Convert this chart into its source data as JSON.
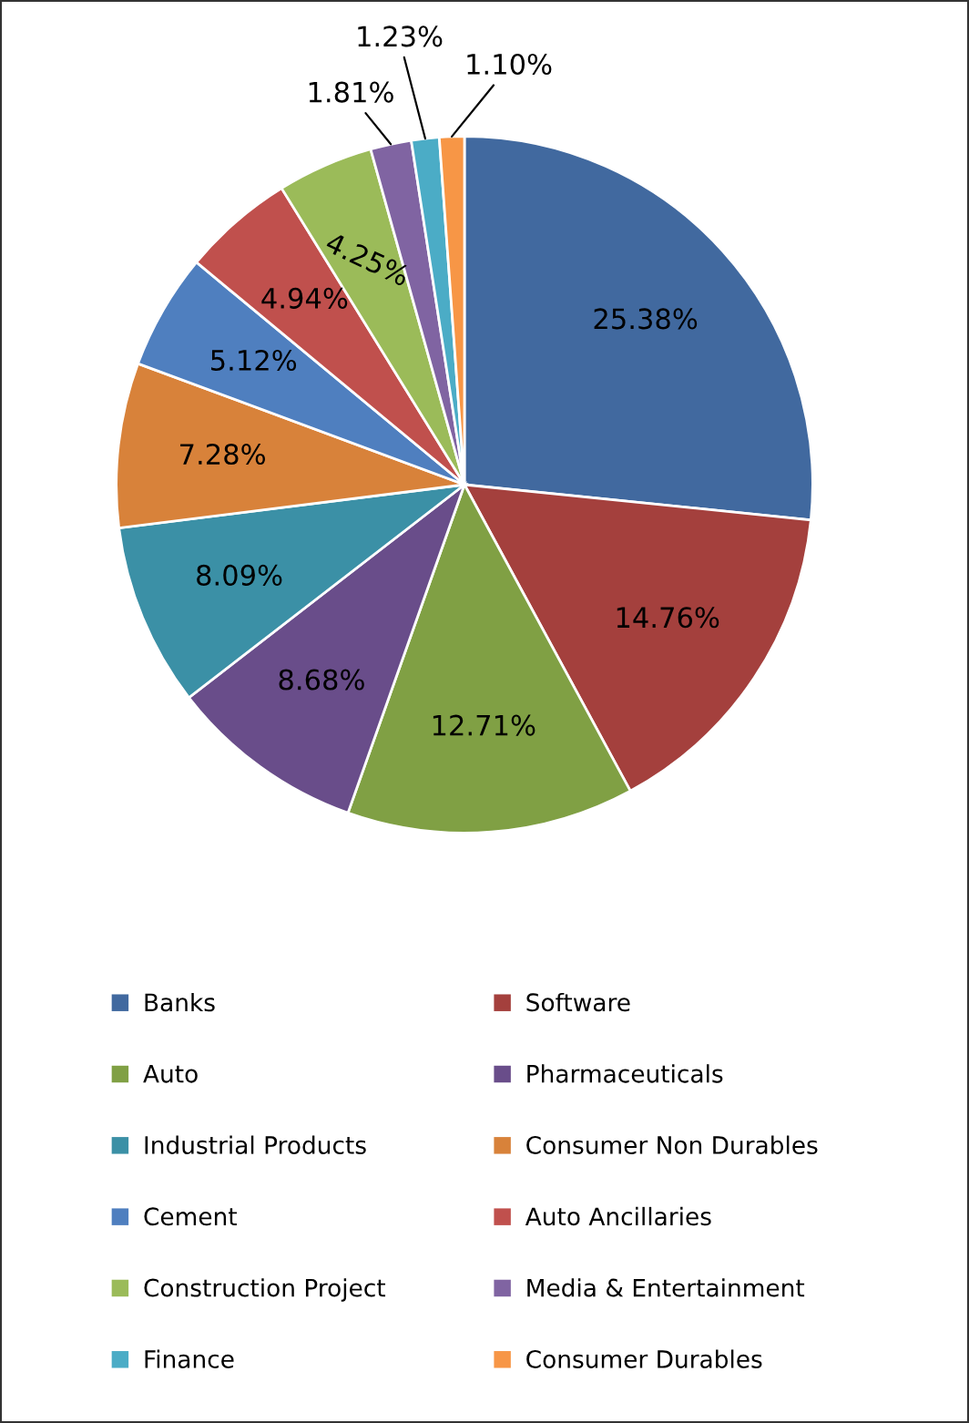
{
  "chart_data": {
    "type": "pie",
    "categories": [
      "Banks",
      "Software",
      "Auto",
      "Pharmaceuticals",
      "Industrial Products",
      "Consumer Non Durables",
      "Cement",
      "Auto Ancillaries",
      "Construction Project",
      "Media & Entertainment",
      "Finance",
      "Consumer Durables"
    ],
    "values": [
      25.38,
      14.76,
      12.71,
      8.68,
      8.09,
      7.28,
      5.12,
      4.94,
      4.25,
      1.81,
      1.23,
      1.1
    ],
    "colors": [
      "#41699f",
      "#a4403d",
      "#80a044",
      "#694d8a",
      "#3b90a6",
      "#d8823a",
      "#4f7fbf",
      "#c0504d",
      "#9bbb59",
      "#8064a2",
      "#4bacc6",
      "#f79646"
    ],
    "value_labels": [
      "25.38%",
      "14.76%",
      "12.71%",
      "8.68%",
      "8.09%",
      "7.28%",
      "5.12%",
      "4.94%",
      "4.25%",
      "1.81%",
      "1.23%",
      "1.10%"
    ],
    "legend": "bottom"
  }
}
